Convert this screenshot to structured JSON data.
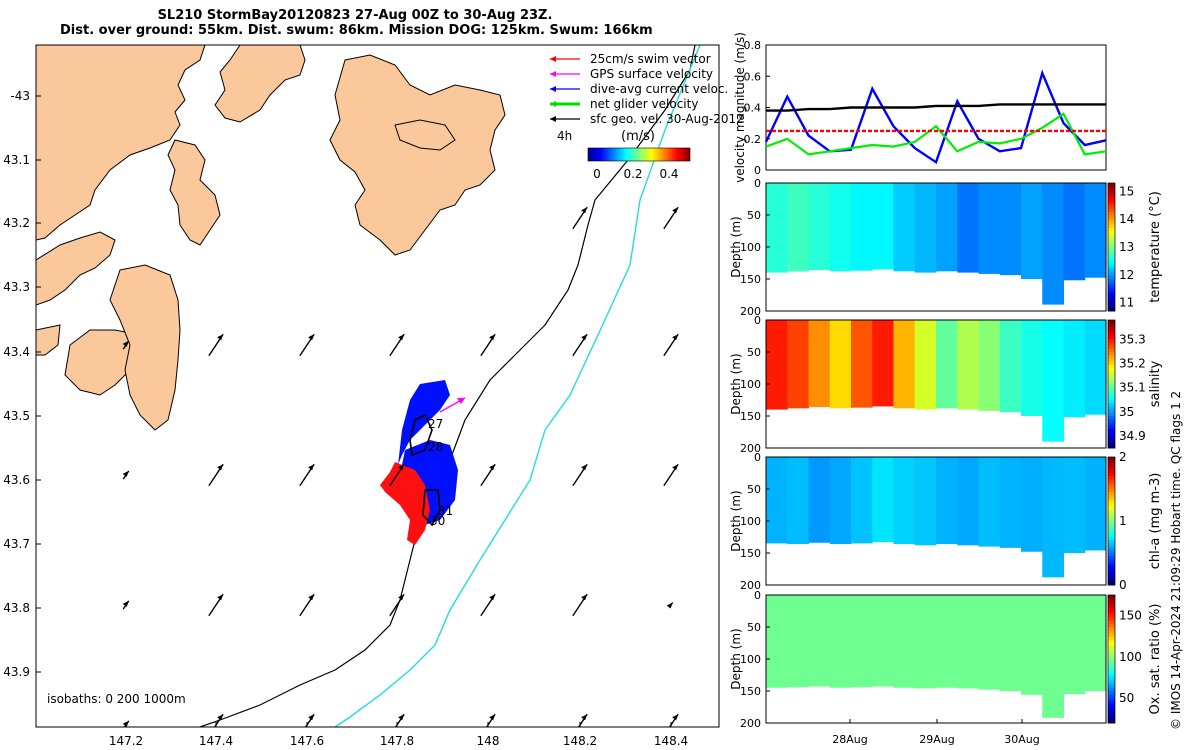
{
  "title": {
    "line1": "SL210 StormBay20120823 27-Aug 00Z to 30-Aug 23Z.",
    "line2": "Dist. over ground: 55km. Dist. swum: 86km. Mission DOG: 125km. Swum: 166km"
  },
  "map": {
    "lat_labels": [
      "-43",
      "43.1",
      "43.2",
      "43.3",
      "43.4",
      "43.5",
      "43.6",
      "43.7",
      "43.8",
      "43.9"
    ],
    "lon_labels": [
      "147.2",
      "147.4",
      "147.6",
      "147.8",
      "148",
      "148.2",
      "148.4"
    ],
    "legend": [
      {
        "label": "25cm/s swim vector",
        "color": "#ff0000"
      },
      {
        "label": "GPS surface velocity",
        "color": "#ff00ff"
      },
      {
        "label": "dive-avg current veloc.",
        "color": "#0000ff"
      },
      {
        "label": "net glider velocity",
        "color": "#00dd00"
      },
      {
        "label": "sfc geo. vel. 30-Aug-2012",
        "color": "#000000"
      }
    ],
    "colorbar_prefix": "4h",
    "colorbar_units": "(m/s)",
    "colorbar_ticks": [
      "0",
      "0.2",
      "0.4"
    ],
    "isobaths_label": "isobaths: 0   200  1000m",
    "track_labels": [
      "27",
      "28",
      "31",
      "30"
    ]
  },
  "chart_data": [
    {
      "type": "line",
      "title": "",
      "ylabel": "velocity magnitude (m/s)",
      "ylim": [
        0,
        0.8
      ],
      "yticks": [
        "0",
        "0.2",
        "0.4",
        "0.6",
        "0.8"
      ],
      "x": [
        0,
        0.25,
        0.5,
        0.75,
        1,
        1.25,
        1.5,
        1.75,
        2,
        2.25,
        2.5,
        2.75,
        3,
        3.25,
        3.5,
        3.75,
        4
      ],
      "series": [
        {
          "name": "dive-avg current",
          "color": "#0000ff",
          "values": [
            0.18,
            0.47,
            0.22,
            0.12,
            0.13,
            0.52,
            0.28,
            0.14,
            0.05,
            0.44,
            0.2,
            0.12,
            0.14,
            0.62,
            0.3,
            0.16,
            0.19
          ]
        },
        {
          "name": "net glider velocity",
          "color": "#00ee00",
          "values": [
            0.15,
            0.2,
            0.1,
            0.12,
            0.14,
            0.16,
            0.15,
            0.18,
            0.28,
            0.12,
            0.18,
            0.17,
            0.2,
            0.27,
            0.36,
            0.1,
            0.12
          ]
        },
        {
          "name": "sfc geo vel",
          "color": "#000000",
          "values": [
            0.38,
            0.38,
            0.39,
            0.39,
            0.4,
            0.4,
            0.4,
            0.4,
            0.41,
            0.41,
            0.41,
            0.42,
            0.42,
            0.42,
            0.42,
            0.42,
            0.42
          ]
        },
        {
          "name": "25cm/s swim",
          "color": "#ff0000",
          "values": [
            0.25,
            0.25,
            0.25,
            0.25,
            0.25,
            0.25,
            0.25,
            0.25,
            0.25,
            0.25,
            0.25,
            0.25,
            0.25,
            0.25,
            0.25,
            0.25,
            0.25
          ]
        }
      ]
    },
    {
      "type": "heatmap",
      "name": "temperature",
      "ylabel": "Depth (m)",
      "cblabel": "temperature (°C)",
      "yticks": [
        "0",
        "50",
        "100",
        "150",
        "200"
      ],
      "cbticks": [
        "15",
        "14",
        "13",
        "12",
        "11"
      ],
      "clim": [
        10.7,
        15.3
      ],
      "columns": [
        12.6,
        12.7,
        12.6,
        12.5,
        12.4,
        12.4,
        12.2,
        12.1,
        12.0,
        11.8,
        11.9,
        11.9,
        12.0,
        11.9,
        11.8,
        11.9
      ],
      "bottom_depth": [
        140,
        138,
        136,
        138,
        137,
        135,
        138,
        140,
        138,
        140,
        142,
        144,
        150,
        190,
        152,
        148
      ]
    },
    {
      "type": "heatmap",
      "name": "salinity",
      "ylabel": "Depth (m)",
      "cblabel": "salinity",
      "yticks": [
        "0",
        "50",
        "100",
        "150",
        "200"
      ],
      "cbticks": [
        "35.3",
        "35.2",
        "35.1",
        "35",
        "34.9"
      ],
      "clim": [
        34.85,
        35.38
      ],
      "columns": [
        35.3,
        35.28,
        35.24,
        35.2,
        35.27,
        35.3,
        35.22,
        35.16,
        35.1,
        35.14,
        35.12,
        35.08,
        35.06,
        35.05,
        35.04,
        35.03
      ],
      "bottom_depth": [
        140,
        138,
        136,
        138,
        137,
        135,
        138,
        140,
        138,
        140,
        142,
        144,
        150,
        190,
        152,
        148
      ]
    },
    {
      "type": "heatmap",
      "name": "chl-a",
      "ylabel": "Depth (m)",
      "cblabel": "chl-a (mg m-3)",
      "yticks": [
        "0",
        "50",
        "100",
        "150",
        "200"
      ],
      "cbticks": [
        "2",
        "1",
        "0"
      ],
      "clim": [
        0,
        2
      ],
      "columns": [
        0.6,
        0.62,
        0.55,
        0.58,
        0.63,
        0.7,
        0.66,
        0.64,
        0.6,
        0.58,
        0.62,
        0.6,
        0.59,
        0.61,
        0.62,
        0.6
      ],
      "bottom_depth": [
        135,
        136,
        134,
        136,
        135,
        133,
        136,
        138,
        136,
        138,
        140,
        142,
        148,
        188,
        150,
        146
      ]
    },
    {
      "type": "heatmap",
      "name": "oxygen",
      "ylabel": "Depth (m)",
      "cblabel": "Ox. sat. ratio (%)",
      "yticks": [
        "0",
        "50",
        "100",
        "150",
        "200"
      ],
      "cbticks": [
        "150",
        "100",
        "50"
      ],
      "clim": [
        20,
        175
      ],
      "columns": [
        95,
        95,
        95,
        95,
        95,
        95,
        95,
        95,
        95,
        95,
        95,
        95,
        95,
        95,
        95,
        95
      ],
      "bottom_depth": [
        145,
        144,
        143,
        145,
        144,
        143,
        145,
        146,
        145,
        146,
        148,
        150,
        156,
        192,
        155,
        150
      ]
    }
  ],
  "time_axis": {
    "labels": [
      "28Aug",
      "29Aug",
      "30Aug"
    ]
  },
  "footer": {
    "qc_label": "Hobart time. QC flags 1  2",
    "credit": "© IMOS 14-Apr-2024 21:09:29"
  }
}
